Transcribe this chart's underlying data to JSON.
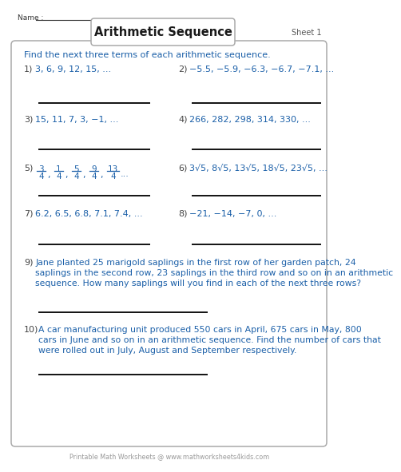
{
  "title": "Arithmetic Sequence",
  "sheet": "Sheet 1",
  "name_label": "Name :",
  "instruction": "Find the next three terms of each arithmetic sequence.",
  "bg_color": "#ffffff",
  "border_color": "#aaaaaa",
  "title_color": "#1a1a1a",
  "instruction_color": "#1a5fa8",
  "problem_color": "#1a5fa8",
  "number_color": "#444444",
  "footer_color": "#999999",
  "footer": "Printable Math Worksheets @ www.mathworksheets4kids.com",
  "p1_num": "1)",
  "p1_text": "3, 6, 9, 12, 15, ...",
  "p2_num": "2)",
  "p2_text": "−5.5, −5.9, −6.3, −6.7, −7.1, ...",
  "p3_num": "3)",
  "p3_text": "15, 11, 7, 3, −1, ...",
  "p4_num": "4)",
  "p4_text": "266, 282, 298, 314, 330, ...",
  "p5_fracs": [
    [
      "3",
      "4"
    ],
    [
      "1",
      "4"
    ],
    [
      "5",
      "4"
    ],
    [
      "9",
      "4"
    ],
    [
      "13",
      "4"
    ]
  ],
  "p6_num": "6)",
  "p6_text": "3√5, 8√5, 13√5, 18√5, 23√5, ...",
  "p7_num": "7)",
  "p7_text": "6.2, 6.5, 6.8, 7.1, 7.4, ...",
  "p8_num": "8)",
  "p8_text": "−21, −14, −7, 0, ...",
  "p9_text": "Jane planted 25 marigold saplings in the first row of her garden patch, 24\nsaplings in the second row, 23 saplings in the third row and so on in an arithmetic\nsequence. How many saplings will you find in each of the next three rows?",
  "p10_text": "A car manufacturing unit produced 550 cars in April, 675 cars in May, 800\ncars in June and so on in an arithmetic sequence. Find the number of cars that\nwere rolled out in July, August and September respectively."
}
